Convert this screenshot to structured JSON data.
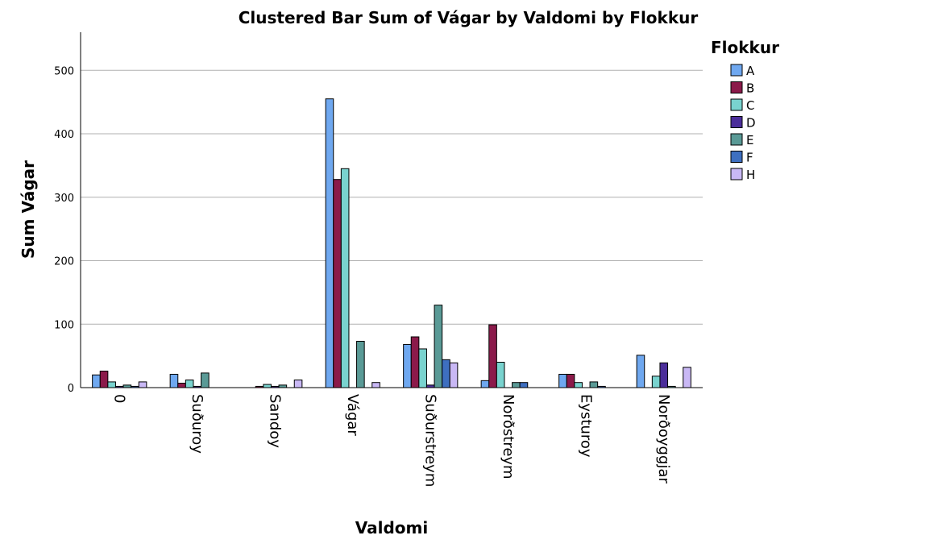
{
  "chart_data": {
    "type": "bar",
    "title": "Clustered Bar Sum of Vágar by Valdomi by Flokkur",
    "xlabel": "Valdomi",
    "ylabel": "Sum Vágar",
    "ylim": [
      0,
      560
    ],
    "yticks": [
      0,
      100,
      200,
      300,
      400,
      500
    ],
    "grid": true,
    "legend_title": "Flokkur",
    "legend_position": "top-right",
    "categories": [
      "0",
      "Suðuroy",
      "Sandoy",
      "Vágar",
      "Suðurstreym",
      "Norðstreym",
      "Eysturoy",
      "Norðoyggjar"
    ],
    "series": [
      {
        "name": "A",
        "color": "#6fa8f0",
        "values": [
          20,
          21,
          0,
          455,
          68,
          11,
          21,
          51
        ]
      },
      {
        "name": "B",
        "color": "#8b1a4a",
        "values": [
          26,
          7,
          2,
          328,
          80,
          99,
          21,
          0
        ]
      },
      {
        "name": "C",
        "color": "#79d3cf",
        "values": [
          9,
          12,
          5,
          345,
          61,
          40,
          8,
          18
        ]
      },
      {
        "name": "D",
        "color": "#4b2e9a",
        "values": [
          2,
          2,
          2,
          0,
          4,
          0,
          0,
          39
        ]
      },
      {
        "name": "E",
        "color": "#5a9a96",
        "values": [
          4,
          23,
          4,
          73,
          130,
          8,
          9,
          2
        ]
      },
      {
        "name": "F",
        "color": "#3e6fc0",
        "values": [
          2,
          0,
          0,
          0,
          44,
          8,
          2,
          0
        ]
      },
      {
        "name": "H",
        "color": "#c9b8f5",
        "values": [
          9,
          0,
          12,
          8,
          39,
          0,
          0,
          32
        ]
      }
    ]
  }
}
